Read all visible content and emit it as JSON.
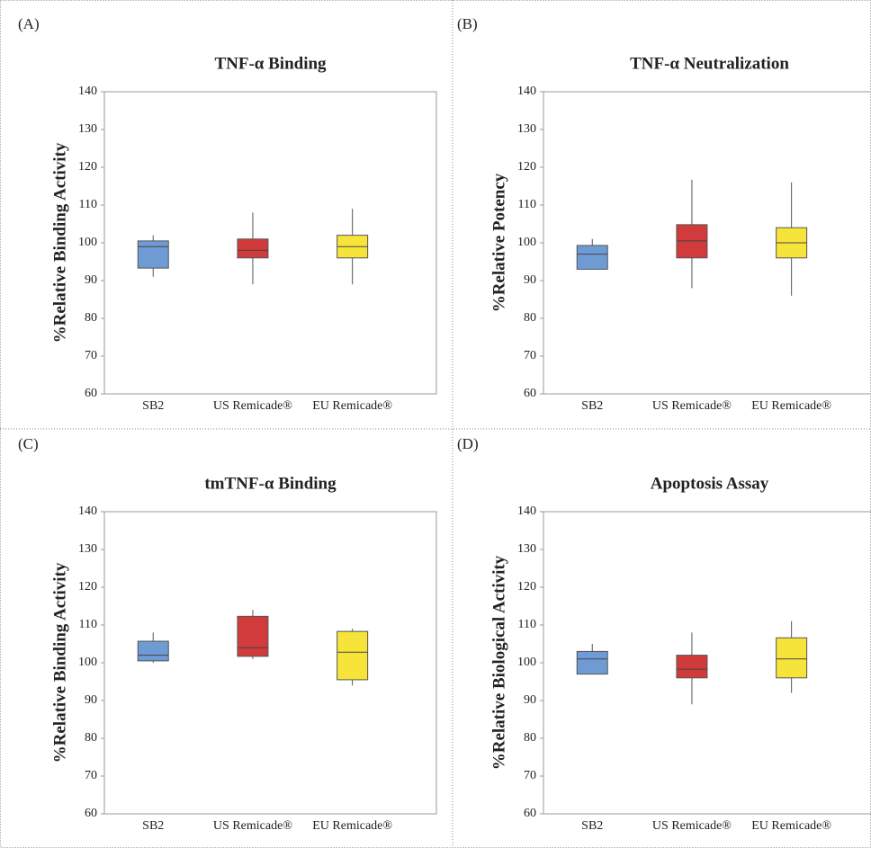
{
  "chart_data": [
    {
      "type": "box",
      "label": "(A)",
      "title": "TNF-α Binding",
      "ylabel": "%Relative Binding Activity",
      "categories": [
        "SB2",
        "US Remicade®",
        "EU Remicade®"
      ],
      "colors": [
        "#6f9bd4",
        "#d13b3b",
        "#f7e43a"
      ],
      "min": [
        91,
        89,
        89
      ],
      "q1": [
        93.3,
        96,
        96
      ],
      "median": [
        99,
        98,
        99
      ],
      "q3": [
        100.5,
        101,
        102
      ],
      "max": [
        102,
        108,
        109
      ],
      "ylim": [
        60,
        140
      ],
      "yticks": [
        60,
        70,
        80,
        90,
        100,
        110,
        120,
        130,
        140
      ]
    },
    {
      "type": "box",
      "label": "(B)",
      "title": "TNF-α Neutralization",
      "ylabel": "%Relative Potency",
      "categories": [
        "SB2",
        "US Remicade®",
        "EU Remicade®"
      ],
      "colors": [
        "#6f9bd4",
        "#d13b3b",
        "#f7e43a"
      ],
      "min": [
        93,
        88,
        86
      ],
      "q1": [
        93,
        96,
        96
      ],
      "median": [
        97,
        100.5,
        100
      ],
      "q3": [
        99.3,
        104.8,
        104
      ],
      "max": [
        101,
        116.7,
        116
      ],
      "ylim": [
        60,
        140
      ],
      "yticks": [
        60,
        70,
        80,
        90,
        100,
        110,
        120,
        130,
        140
      ]
    },
    {
      "type": "box",
      "label": "(C)",
      "title": "tmTNF-α Binding",
      "ylabel": "%Relative Binding Activity",
      "categories": [
        "SB2",
        "US Remicade®",
        "EU Remicade®"
      ],
      "colors": [
        "#6f9bd4",
        "#d13b3b",
        "#f7e43a"
      ],
      "min": [
        100,
        101,
        94
      ],
      "q1": [
        100.5,
        101.7,
        95.5
      ],
      "median": [
        102,
        104,
        102.8
      ],
      "q3": [
        105.7,
        112.3,
        108.3
      ],
      "max": [
        108,
        114,
        109
      ],
      "ylim": [
        60,
        140
      ],
      "yticks": [
        60,
        70,
        80,
        90,
        100,
        110,
        120,
        130,
        140
      ]
    },
    {
      "type": "box",
      "label": "(D)",
      "title": "Apoptosis Assay",
      "ylabel": "%Relative Biological Activity",
      "categories": [
        "SB2",
        "US Remicade®",
        "EU Remicade®"
      ],
      "colors": [
        "#6f9bd4",
        "#d13b3b",
        "#f7e43a"
      ],
      "min": [
        97,
        89,
        92
      ],
      "q1": [
        97,
        96,
        96
      ],
      "median": [
        101,
        98.3,
        101
      ],
      "q3": [
        103,
        102,
        106.6
      ],
      "max": [
        105,
        108,
        111
      ],
      "ylim": [
        60,
        140
      ],
      "yticks": [
        60,
        70,
        80,
        90,
        100,
        110,
        120,
        130,
        140
      ]
    }
  ]
}
